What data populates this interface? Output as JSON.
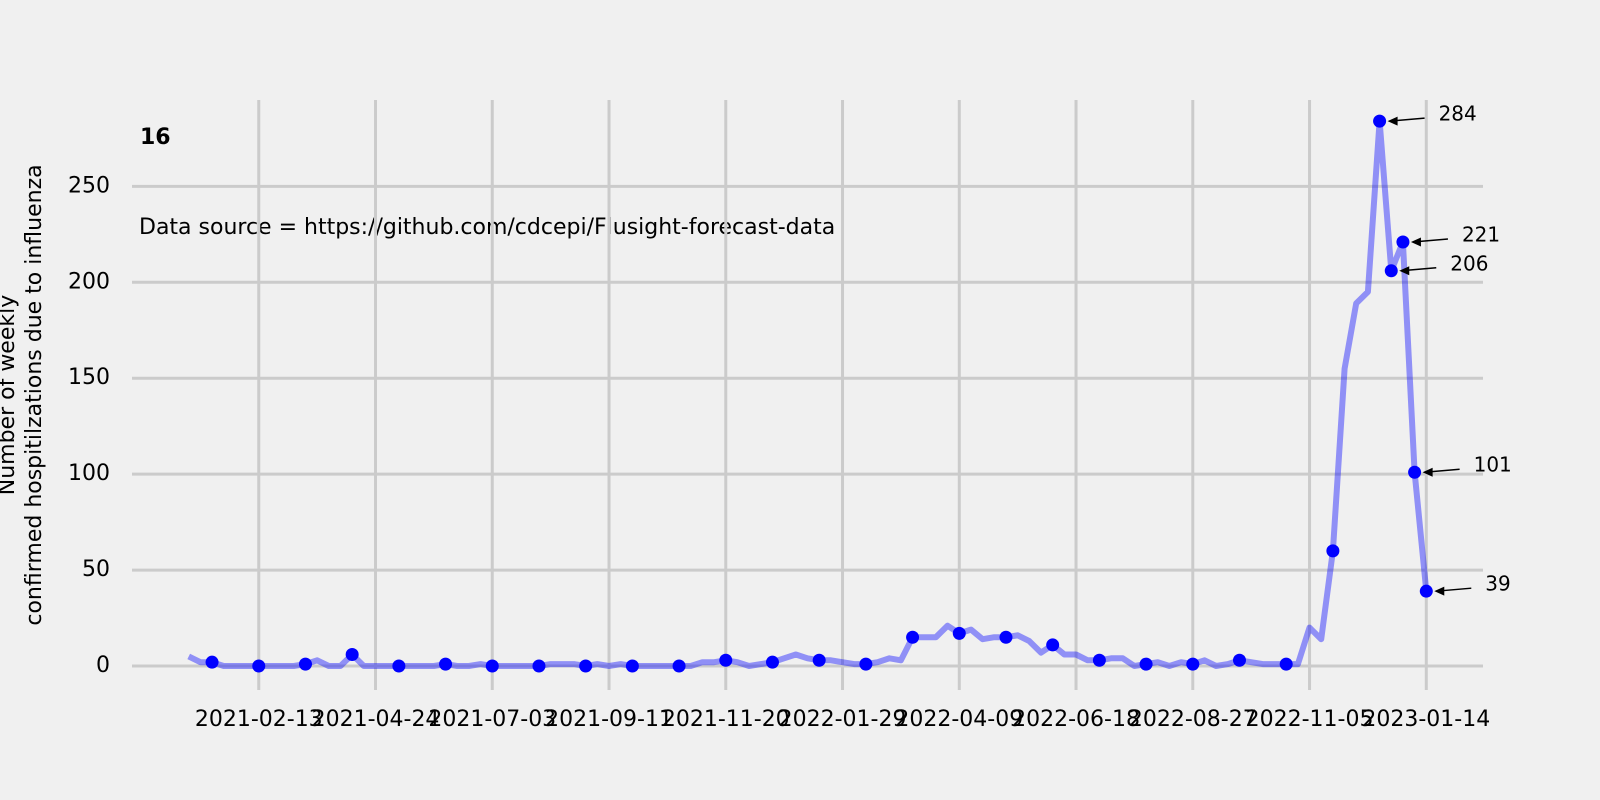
{
  "chart_data": {
    "type": "line",
    "title": "16",
    "annotation": "Data source = https://github.com/cdcepi/Flusight-forecast-data",
    "y_label": [
      "Number of weekly",
      "confirmed hospitilzations due to influenza"
    ],
    "x": [
      "2021-01-02",
      "2021-01-09",
      "2021-01-16",
      "2021-01-23",
      "2021-01-30",
      "2021-02-06",
      "2021-02-13",
      "2021-02-20",
      "2021-02-27",
      "2021-03-06",
      "2021-03-13",
      "2021-03-20",
      "2021-03-27",
      "2021-04-03",
      "2021-04-10",
      "2021-04-17",
      "2021-04-24",
      "2021-05-01",
      "2021-05-08",
      "2021-05-15",
      "2021-05-22",
      "2021-05-29",
      "2021-06-05",
      "2021-06-12",
      "2021-06-19",
      "2021-06-26",
      "2021-07-03",
      "2021-07-10",
      "2021-07-17",
      "2021-07-24",
      "2021-07-31",
      "2021-08-07",
      "2021-08-14",
      "2021-08-21",
      "2021-08-28",
      "2021-09-04",
      "2021-09-11",
      "2021-09-18",
      "2021-09-25",
      "2021-10-02",
      "2021-10-09",
      "2021-10-16",
      "2021-10-23",
      "2021-10-30",
      "2021-11-06",
      "2021-11-13",
      "2021-11-20",
      "2021-11-27",
      "2021-12-04",
      "2021-12-11",
      "2021-12-18",
      "2021-12-25",
      "2022-01-01",
      "2022-01-08",
      "2022-01-15",
      "2022-01-22",
      "2022-01-29",
      "2022-02-05",
      "2022-02-12",
      "2022-02-19",
      "2022-02-26",
      "2022-03-05",
      "2022-03-12",
      "2022-03-19",
      "2022-03-26",
      "2022-04-02",
      "2022-04-09",
      "2022-04-16",
      "2022-04-23",
      "2022-04-30",
      "2022-05-07",
      "2022-05-14",
      "2022-05-21",
      "2022-05-28",
      "2022-06-04",
      "2022-06-11",
      "2022-06-18",
      "2022-06-25",
      "2022-07-02",
      "2022-07-09",
      "2022-07-16",
      "2022-07-23",
      "2022-07-30",
      "2022-08-06",
      "2022-08-13",
      "2022-08-20",
      "2022-08-27",
      "2022-09-03",
      "2022-09-10",
      "2022-09-17",
      "2022-09-24",
      "2022-10-01",
      "2022-10-08",
      "2022-10-15",
      "2022-10-22",
      "2022-10-29",
      "2022-11-05",
      "2022-11-12",
      "2022-11-19",
      "2022-11-26",
      "2022-12-03",
      "2022-12-10",
      "2022-12-17",
      "2022-12-24",
      "2022-12-31",
      "2023-01-07",
      "2023-01-14"
    ],
    "series": [
      {
        "color": "#0000ff",
        "values": [
          5,
          2,
          2,
          0,
          0,
          0,
          0,
          0,
          0,
          0,
          1,
          3,
          0,
          0,
          6,
          0,
          0,
          0,
          0,
          0,
          0,
          0,
          1,
          0,
          0,
          1,
          0,
          0,
          0,
          0,
          0,
          1,
          1,
          1,
          0,
          1,
          0,
          1,
          0,
          0,
          0,
          0,
          0,
          0,
          2,
          2,
          3,
          2,
          0,
          1,
          2,
          4,
          6,
          4,
          3,
          3,
          2,
          1,
          1,
          2,
          4,
          3,
          15,
          15,
          15,
          21,
          17,
          19,
          14,
          15,
          15,
          16,
          13,
          7,
          11,
          6,
          6,
          3,
          3,
          4,
          4,
          0,
          1,
          2,
          0,
          2,
          1,
          3,
          0,
          1,
          3,
          2,
          1,
          1,
          1,
          1,
          20,
          14,
          60,
          155,
          189,
          195,
          284,
          206,
          221,
          101,
          39
        ]
      }
    ],
    "markers": {
      "color": "#0000ff",
      "x": [
        "2021-01-16",
        "2021-02-13",
        "2021-03-13",
        "2021-04-10",
        "2021-05-08",
        "2021-06-05",
        "2021-07-03",
        "2021-07-31",
        "2021-08-28",
        "2021-09-25",
        "2021-10-23",
        "2021-11-20",
        "2021-12-18",
        "2022-01-15",
        "2022-02-12",
        "2022-03-12",
        "2022-04-09",
        "2022-05-07",
        "2022-06-04",
        "2022-07-02",
        "2022-07-30",
        "2022-08-27",
        "2022-09-24",
        "2022-10-22",
        "2022-11-19"
      ],
      "values": [
        2,
        0,
        1,
        6,
        0,
        1,
        0,
        0,
        0,
        0,
        0,
        3,
        2,
        3,
        1,
        15,
        17,
        15,
        11,
        3,
        1,
        1,
        3,
        1,
        60
      ]
    },
    "annotations": [
      {
        "x": "2022-12-17",
        "value": 284
      },
      {
        "x": "2022-12-24",
        "value": 206
      },
      {
        "x": "2022-12-31",
        "value": 221
      },
      {
        "x": "2023-01-07",
        "value": 101
      },
      {
        "x": "2023-01-14",
        "value": 39
      }
    ],
    "xlim": [
      "2020-11-29",
      "2023-02-17"
    ],
    "xticks": [
      "2021-02-13",
      "2021-04-24",
      "2021-07-03",
      "2021-09-11",
      "2021-11-20",
      "2022-01-29",
      "2022-04-09",
      "2022-06-18",
      "2022-08-27",
      "2022-11-05",
      "2023-01-14"
    ],
    "ylim": [
      -12.5,
      295
    ],
    "yticks": [
      0,
      50,
      100,
      150,
      200,
      250
    ],
    "grid": true
  }
}
